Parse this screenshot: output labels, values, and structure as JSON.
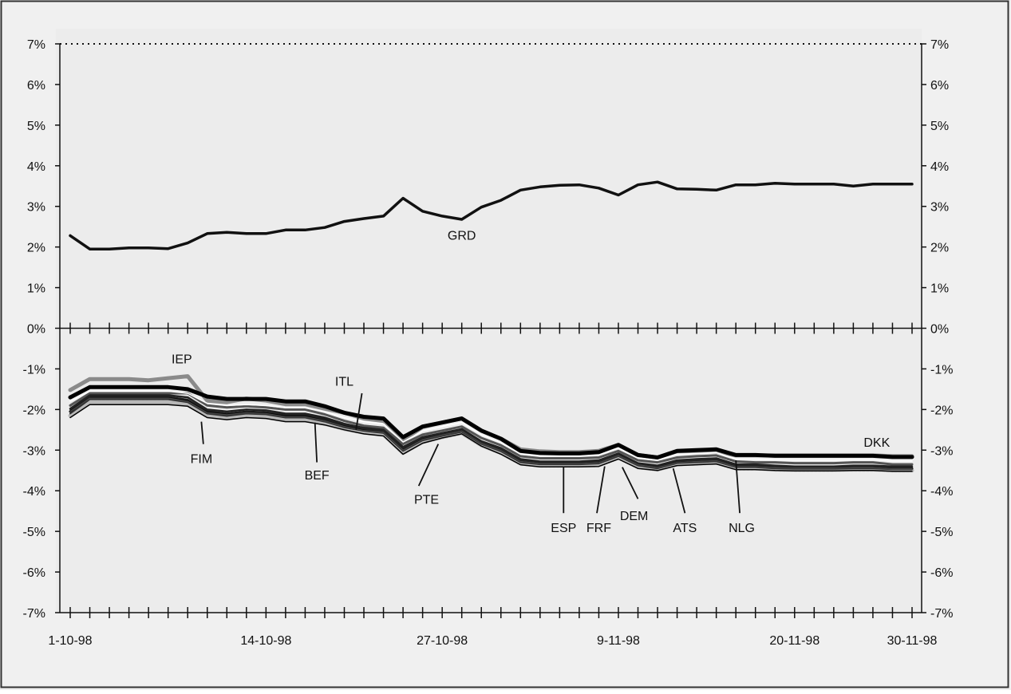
{
  "chart_data": {
    "type": "line",
    "title": "",
    "xlabel": "",
    "ylabel": "",
    "ylim": [
      -7,
      7
    ],
    "grid": false,
    "y_ticks": [
      {
        "value": 7,
        "label": "7%"
      },
      {
        "value": 6,
        "label": "6%"
      },
      {
        "value": 5,
        "label": "5%"
      },
      {
        "value": 4,
        "label": "4%"
      },
      {
        "value": 3,
        "label": "3%"
      },
      {
        "value": 2,
        "label": "2%"
      },
      {
        "value": 1,
        "label": "1%"
      },
      {
        "value": 0,
        "label": "0%"
      },
      {
        "value": -1,
        "label": "-1%"
      },
      {
        "value": -2,
        "label": "-2%"
      },
      {
        "value": -3,
        "label": "-3%"
      },
      {
        "value": -4,
        "label": "-4%"
      },
      {
        "value": -5,
        "label": "-5%"
      },
      {
        "value": -6,
        "label": "-6%"
      },
      {
        "value": -7,
        "label": "-7%"
      }
    ],
    "x_tick_labels": [
      {
        "index": 0,
        "label": "1-10-98"
      },
      {
        "index": 10,
        "label": "14-10-98"
      },
      {
        "index": 19,
        "label": "27-10-98"
      },
      {
        "index": 28,
        "label": "9-11-98"
      },
      {
        "index": 37,
        "label": "20-11-98"
      },
      {
        "index": 43,
        "label": "30-11-98"
      }
    ],
    "reference_line": {
      "value": 7,
      "style": "dotted"
    },
    "series": [
      {
        "name": "GRD",
        "color": "#111111",
        "width": 3.5,
        "values": [
          2.28,
          1.95,
          1.95,
          1.98,
          1.98,
          1.96,
          2.1,
          2.33,
          2.36,
          2.33,
          2.33,
          2.42,
          2.42,
          2.48,
          2.63,
          2.7,
          2.76,
          3.2,
          2.88,
          2.76,
          2.68,
          2.98,
          3.15,
          3.4,
          3.48,
          3.52,
          3.53,
          3.45,
          3.28,
          3.53,
          3.6,
          3.43,
          3.42,
          3.4,
          3.53,
          3.53,
          3.57,
          3.55,
          3.55,
          3.55,
          3.5,
          3.55,
          3.55,
          3.55
        ]
      },
      {
        "name": "IEP",
        "color": "#8a8a8a",
        "width": 5,
        "values": [
          -1.52,
          -1.25,
          -1.25,
          -1.25,
          -1.28,
          -1.23,
          -1.18,
          -1.78,
          -1.82,
          -1.73,
          -1.78,
          -1.87,
          -1.87,
          -1.98,
          -2.08,
          -2.22,
          -2.28,
          -2.75,
          -2.43,
          -2.32,
          -2.22,
          -2.52,
          -2.72,
          -2.98,
          -3.03,
          -3.05,
          -3.05,
          -3.02,
          -2.87,
          -3.12,
          -3.18,
          -3.03,
          -3.03,
          -3.03,
          -3.13,
          -3.13,
          -3.13,
          -3.13,
          -3.13,
          -3.13,
          -3.13,
          -3.13,
          -3.15,
          -3.15
        ]
      },
      {
        "name": "DKK",
        "color": "#000000",
        "width": 5,
        "values": [
          -1.7,
          -1.45,
          -1.45,
          -1.45,
          -1.45,
          -1.45,
          -1.5,
          -1.68,
          -1.74,
          -1.74,
          -1.74,
          -1.8,
          -1.8,
          -1.92,
          -2.08,
          -2.18,
          -2.22,
          -2.68,
          -2.42,
          -2.32,
          -2.22,
          -2.52,
          -2.72,
          -3.02,
          -3.07,
          -3.08,
          -3.08,
          -3.05,
          -2.87,
          -3.12,
          -3.18,
          -3.02,
          -3.0,
          -2.98,
          -3.12,
          -3.12,
          -3.14,
          -3.14,
          -3.14,
          -3.14,
          -3.14,
          -3.14,
          -3.17,
          -3.17
        ]
      },
      {
        "name": "ITL",
        "color": "#555555",
        "width": 3,
        "values": [
          -1.9,
          -1.6,
          -1.6,
          -1.6,
          -1.6,
          -1.6,
          -1.6,
          -1.9,
          -1.95,
          -1.92,
          -1.95,
          -2.0,
          -2.0,
          -2.12,
          -2.28,
          -2.4,
          -2.45,
          -2.85,
          -2.62,
          -2.52,
          -2.42,
          -2.7,
          -2.88,
          -3.15,
          -3.2,
          -3.2,
          -3.2,
          -3.18,
          -3.02,
          -3.25,
          -3.3,
          -3.18,
          -3.15,
          -3.13,
          -3.28,
          -3.3,
          -3.3,
          -3.32,
          -3.32,
          -3.32,
          -3.3,
          -3.3,
          -3.35,
          -3.35
        ]
      },
      {
        "name": "BEF",
        "color": "#222222",
        "width": 2.5,
        "values": [
          -1.98,
          -1.65,
          -1.65,
          -1.65,
          -1.65,
          -1.65,
          -1.7,
          -2.0,
          -2.05,
          -2.0,
          -2.02,
          -2.1,
          -2.1,
          -2.2,
          -2.35,
          -2.45,
          -2.5,
          -2.92,
          -2.68,
          -2.58,
          -2.48,
          -2.78,
          -2.95,
          -3.22,
          -3.28,
          -3.28,
          -3.28,
          -3.25,
          -3.08,
          -3.32,
          -3.38,
          -3.25,
          -3.22,
          -3.2,
          -3.35,
          -3.35,
          -3.38,
          -3.4,
          -3.4,
          -3.4,
          -3.38,
          -3.38,
          -3.4,
          -3.4
        ]
      },
      {
        "name": "FIM",
        "color": "#000000",
        "width": 3,
        "values": [
          -2.05,
          -1.7,
          -1.7,
          -1.7,
          -1.7,
          -1.7,
          -1.78,
          -2.07,
          -2.12,
          -2.07,
          -2.08,
          -2.15,
          -2.15,
          -2.25,
          -2.4,
          -2.5,
          -2.55,
          -2.98,
          -2.72,
          -2.62,
          -2.52,
          -2.82,
          -3.0,
          -3.27,
          -3.32,
          -3.32,
          -3.32,
          -3.3,
          -3.12,
          -3.35,
          -3.42,
          -3.3,
          -3.27,
          -3.25,
          -3.4,
          -3.4,
          -3.42,
          -3.43,
          -3.43,
          -3.43,
          -3.42,
          -3.42,
          -3.45,
          -3.45
        ]
      },
      {
        "name": "PTE",
        "color": "#333333",
        "width": 2,
        "values": [
          -2.1,
          -1.75,
          -1.75,
          -1.75,
          -1.75,
          -1.75,
          -1.82,
          -2.1,
          -2.16,
          -2.1,
          -2.12,
          -2.2,
          -2.2,
          -2.3,
          -2.44,
          -2.53,
          -2.58,
          -3.02,
          -2.76,
          -2.65,
          -2.55,
          -2.85,
          -3.03,
          -3.3,
          -3.35,
          -3.35,
          -3.35,
          -3.33,
          -3.15,
          -3.38,
          -3.45,
          -3.32,
          -3.3,
          -3.28,
          -3.42,
          -3.42,
          -3.45,
          -3.46,
          -3.46,
          -3.46,
          -3.45,
          -3.45,
          -3.47,
          -3.47
        ]
      },
      {
        "name": "ESP",
        "color": "#b8b8b8",
        "width": 5,
        "values": [
          -2.15,
          -1.82,
          -1.82,
          -1.82,
          -1.82,
          -1.82,
          -1.88,
          -2.15,
          -2.2,
          -2.15,
          -2.17,
          -2.25,
          -2.25,
          -2.35,
          -2.48,
          -2.57,
          -2.62,
          -3.07,
          -2.8,
          -2.68,
          -2.58,
          -2.88,
          -3.07,
          -3.33,
          -3.38,
          -3.38,
          -3.38,
          -3.37,
          -3.18,
          -3.42,
          -3.48,
          -3.35,
          -3.33,
          -3.31,
          -3.45,
          -3.45,
          -3.48,
          -3.49,
          -3.49,
          -3.49,
          -3.48,
          -3.48,
          -3.5,
          -3.5
        ]
      },
      {
        "name": "FRF",
        "color": "#444444",
        "width": 1.5,
        "values": [
          -2.05,
          -1.72,
          -1.72,
          -1.72,
          -1.72,
          -1.72,
          -1.8,
          -2.08,
          -2.13,
          -2.08,
          -2.1,
          -2.18,
          -2.18,
          -2.28,
          -2.42,
          -2.52,
          -2.56,
          -3.0,
          -2.74,
          -2.63,
          -2.53,
          -2.83,
          -3.01,
          -3.28,
          -3.33,
          -3.33,
          -3.33,
          -3.31,
          -3.13,
          -3.36,
          -3.43,
          -3.31,
          -3.28,
          -3.26,
          -3.41,
          -3.41,
          -3.43,
          -3.44,
          -3.44,
          -3.44,
          -3.43,
          -3.43,
          -3.46,
          -3.46
        ]
      },
      {
        "name": "DEM",
        "color": "#000000",
        "width": 1.5,
        "values": [
          -2.2,
          -1.88,
          -1.88,
          -1.88,
          -1.88,
          -1.88,
          -1.92,
          -2.2,
          -2.25,
          -2.2,
          -2.22,
          -2.3,
          -2.3,
          -2.38,
          -2.5,
          -2.6,
          -2.65,
          -3.1,
          -2.83,
          -2.7,
          -2.6,
          -2.9,
          -3.1,
          -3.36,
          -3.41,
          -3.41,
          -3.41,
          -3.4,
          -3.22,
          -3.45,
          -3.5,
          -3.38,
          -3.36,
          -3.34,
          -3.48,
          -3.48,
          -3.5,
          -3.51,
          -3.51,
          -3.51,
          -3.5,
          -3.5,
          -3.52,
          -3.52
        ]
      },
      {
        "name": "ATS",
        "color": "#222222",
        "width": 1.5,
        "values": [
          -2.0,
          -1.68,
          -1.68,
          -1.68,
          -1.68,
          -1.68,
          -1.75,
          -2.03,
          -2.09,
          -2.04,
          -2.06,
          -2.13,
          -2.13,
          -2.24,
          -2.38,
          -2.48,
          -2.53,
          -2.96,
          -2.7,
          -2.6,
          -2.5,
          -2.8,
          -2.98,
          -3.25,
          -3.3,
          -3.3,
          -3.3,
          -3.28,
          -3.1,
          -3.33,
          -3.4,
          -3.28,
          -3.25,
          -3.23,
          -3.38,
          -3.38,
          -3.4,
          -3.41,
          -3.41,
          -3.41,
          -3.4,
          -3.4,
          -3.43,
          -3.43
        ]
      },
      {
        "name": "NLG",
        "color": "#ffffff",
        "width": 1.5,
        "values": [
          -1.8,
          -1.55,
          -1.55,
          -1.55,
          -1.55,
          -1.55,
          -1.6,
          -1.85,
          -1.9,
          -1.88,
          -1.9,
          -1.96,
          -1.96,
          -2.06,
          -2.2,
          -2.3,
          -2.35,
          -2.8,
          -2.53,
          -2.42,
          -2.32,
          -2.62,
          -2.82,
          -3.1,
          -3.15,
          -3.15,
          -3.15,
          -3.12,
          -2.95,
          -3.2,
          -3.25,
          -3.1,
          -3.08,
          -3.06,
          -3.22,
          -3.22,
          -3.24,
          -3.25,
          -3.25,
          -3.25,
          -3.24,
          -3.24,
          -3.27,
          -3.27
        ]
      }
    ],
    "annotations": [
      {
        "name": "GRD",
        "label": "GRD",
        "index": 20,
        "value": 2.3
      },
      {
        "name": "IEP",
        "label": "IEP",
        "index": 5.7,
        "value": -0.75
      },
      {
        "name": "ITL",
        "label": "ITL",
        "index": 14,
        "value": -1.3
      },
      {
        "name": "FIM",
        "label": "FIM",
        "index": 6.7,
        "value": -3.2
      },
      {
        "name": "BEF",
        "label": "BEF",
        "index": 12.6,
        "value": -3.6
      },
      {
        "name": "PTE",
        "label": "PTE",
        "index": 18.2,
        "value": -4.2
      },
      {
        "name": "ESP",
        "label": "ESP",
        "index": 25.2,
        "value": -4.9
      },
      {
        "name": "FRF",
        "label": "FRF",
        "index": 27.0,
        "value": -4.9
      },
      {
        "name": "DEM",
        "label": "DEM",
        "index": 28.8,
        "value": -4.6
      },
      {
        "name": "ATS",
        "label": "ATS",
        "index": 31.4,
        "value": -4.9
      },
      {
        "name": "NLG",
        "label": "NLG",
        "index": 34.3,
        "value": -4.9
      },
      {
        "name": "DKK",
        "label": "DKK",
        "index": 41.2,
        "value": -2.8
      }
    ],
    "leaders": [
      {
        "name": "ITL",
        "from": [
          14.9,
          -1.6
        ],
        "to": [
          14.6,
          -2.5
        ]
      },
      {
        "name": "FIM",
        "from": [
          6.7,
          -2.3
        ],
        "to": [
          6.8,
          -2.85
        ]
      },
      {
        "name": "BEF",
        "from": [
          12.5,
          -2.32
        ],
        "to": [
          12.6,
          -3.3
        ]
      },
      {
        "name": "PTE",
        "from": [
          18.8,
          -2.85
        ],
        "to": [
          17.8,
          -3.88
        ]
      },
      {
        "name": "ESP",
        "from": [
          25.2,
          -3.42
        ],
        "to": [
          25.2,
          -4.55
        ]
      },
      {
        "name": "FRF",
        "from": [
          27.3,
          -3.4
        ],
        "to": [
          26.9,
          -4.55
        ]
      },
      {
        "name": "DEM",
        "from": [
          28.2,
          -3.42
        ],
        "to": [
          29.0,
          -4.2
        ]
      },
      {
        "name": "ATS",
        "from": [
          30.8,
          -3.45
        ],
        "to": [
          31.4,
          -4.55
        ]
      },
      {
        "name": "NLG",
        "from": [
          34.0,
          -3.25
        ],
        "to": [
          34.2,
          -4.55
        ]
      }
    ]
  }
}
